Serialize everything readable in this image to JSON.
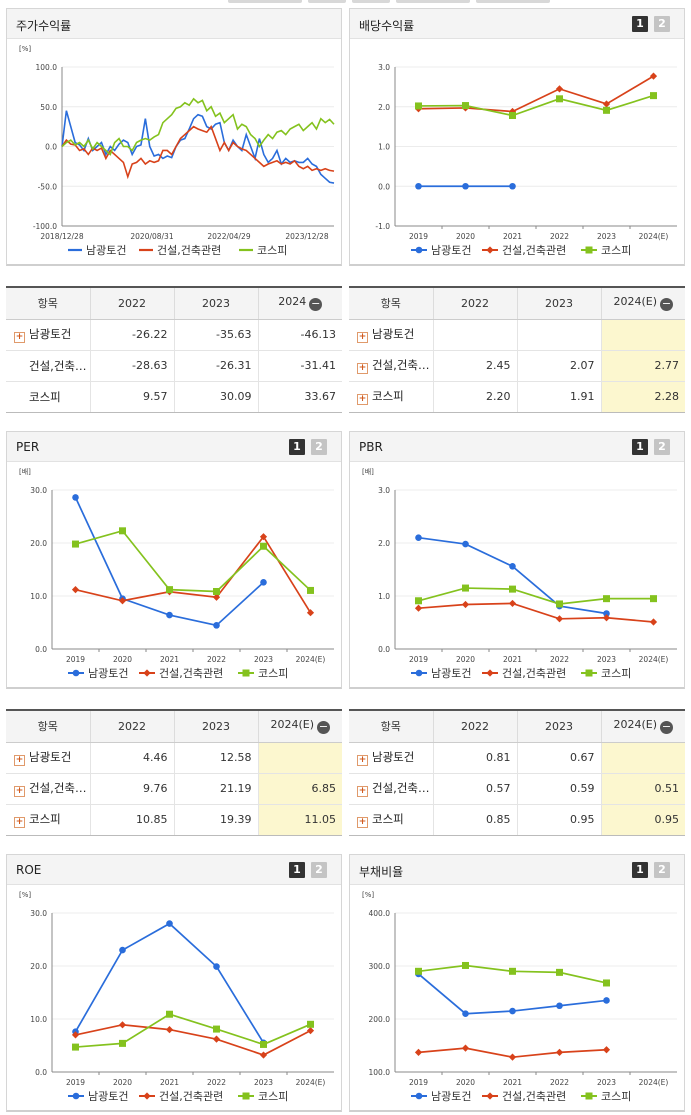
{
  "colors": {
    "s1": "#2a6ddb",
    "s2": "#d8421a",
    "s3": "#84c21e"
  },
  "legend": [
    "남광토건",
    "건설,건축관련",
    "코스피"
  ],
  "panels": {
    "stock": {
      "title": "주가수익률",
      "unit": "[%]"
    },
    "dividend": {
      "title": "배당수익률",
      "page1": "1",
      "page2": "2"
    },
    "per": {
      "title": "PER",
      "unit": "[배]",
      "page1": "1",
      "page2": "2"
    },
    "pbr": {
      "title": "PBR",
      "unit": "[배]",
      "page1": "1",
      "page2": "2"
    },
    "roe": {
      "title": "ROE",
      "unit": "[%]",
      "page1": "1",
      "page2": "2"
    },
    "debt": {
      "title": "부채비율",
      "unit": "[%]",
      "page1": "1",
      "page2": "2"
    }
  },
  "tables": {
    "stock": {
      "headers": [
        "항목",
        "2022",
        "2023",
        "2024"
      ],
      "rows": [
        {
          "name": "남광토건",
          "plus": true,
          "values": [
            "-26.22",
            "-35.63",
            "-46.13"
          ]
        },
        {
          "name": "건설,건축…",
          "plus": false,
          "values": [
            "-28.63",
            "-26.31",
            "-31.41"
          ]
        },
        {
          "name": "코스피",
          "plus": false,
          "values": [
            "9.57",
            "30.09",
            "33.67"
          ]
        }
      ]
    },
    "dividend": {
      "headers": [
        "항목",
        "2022",
        "2023",
        "2024(E)"
      ],
      "rows": [
        {
          "name": "남광토건",
          "plus": true,
          "values": [
            "",
            "",
            ""
          ]
        },
        {
          "name": "건설,건축…",
          "plus": true,
          "values": [
            "2.45",
            "2.07",
            "2.77"
          ]
        },
        {
          "name": "코스피",
          "plus": true,
          "values": [
            "2.20",
            "1.91",
            "2.28"
          ]
        }
      ]
    },
    "per": {
      "headers": [
        "항목",
        "2022",
        "2023",
        "2024(E)"
      ],
      "rows": [
        {
          "name": "남광토건",
          "plus": true,
          "values": [
            "4.46",
            "12.58",
            ""
          ]
        },
        {
          "name": "건설,건축…",
          "plus": true,
          "values": [
            "9.76",
            "21.19",
            "6.85"
          ]
        },
        {
          "name": "코스피",
          "plus": true,
          "values": [
            "10.85",
            "19.39",
            "11.05"
          ]
        }
      ]
    },
    "pbr": {
      "headers": [
        "항목",
        "2022",
        "2023",
        "2024(E)"
      ],
      "rows": [
        {
          "name": "남광토건",
          "plus": true,
          "values": [
            "0.81",
            "0.67",
            ""
          ]
        },
        {
          "name": "건설,건축…",
          "plus": true,
          "values": [
            "0.57",
            "0.59",
            "0.51"
          ]
        },
        {
          "name": "코스피",
          "plus": true,
          "values": [
            "0.85",
            "0.95",
            "0.95"
          ]
        }
      ]
    }
  },
  "chart_data": [
    {
      "id": "stock",
      "type": "line",
      "ylim": [
        -100,
        100
      ],
      "yticks": [
        "100.0",
        "50.0",
        "0.0",
        "-50.0",
        "-100.0"
      ],
      "xticks": [
        "2018/12/28",
        "2020/08/31",
        "2022/04/29",
        "2023/12/28"
      ],
      "series": [
        {
          "name": "남광토건",
          "values": [
            0,
            45,
            25,
            5,
            2,
            -5,
            10,
            -5,
            0,
            5,
            -10,
            0,
            -5,
            3,
            8,
            5,
            -10,
            0,
            2,
            35,
            0,
            -12,
            -10,
            -15,
            -12,
            -14,
            0,
            8,
            10,
            22,
            35,
            40,
            38,
            25,
            22,
            28,
            30,
            5,
            -5,
            8,
            0,
            -5,
            15,
            0,
            -15,
            10,
            -10,
            -20,
            -15,
            -5,
            -22,
            -15,
            -20,
            -18,
            -20,
            -20,
            -15,
            -22,
            -25,
            -35,
            -40,
            -45,
            -46
          ]
        },
        {
          "name": "건설,건축관련",
          "values": [
            0,
            8,
            3,
            2,
            -5,
            -3,
            -10,
            -2,
            -5,
            -2,
            -15,
            -5,
            -10,
            -15,
            -20,
            -38,
            -22,
            -20,
            -15,
            -22,
            -18,
            -20,
            -18,
            -5,
            -5,
            -10,
            0,
            10,
            15,
            20,
            25,
            22,
            20,
            18,
            25,
            10,
            -5,
            5,
            -5,
            5,
            0,
            -3,
            -5,
            -10,
            -15,
            -20,
            -25,
            -22,
            -20,
            -18,
            -22,
            -20,
            -22,
            -18,
            -25,
            -28,
            -25,
            -30,
            -28,
            -30,
            -28,
            -30,
            -31
          ]
        },
        {
          "name": "코스피",
          "values": [
            0,
            5,
            8,
            2,
            5,
            0,
            8,
            -3,
            5,
            0,
            -5,
            -10,
            5,
            10,
            0,
            0,
            -5,
            5,
            8,
            10,
            8,
            12,
            15,
            30,
            35,
            40,
            48,
            50,
            55,
            52,
            60,
            55,
            58,
            45,
            50,
            38,
            42,
            30,
            35,
            40,
            22,
            28,
            25,
            15,
            10,
            0,
            8,
            15,
            10,
            18,
            20,
            15,
            22,
            25,
            28,
            20,
            25,
            30,
            22,
            35,
            30,
            34,
            28
          ]
        }
      ]
    },
    {
      "id": "dividend",
      "type": "line",
      "ylim": [
        -1,
        3
      ],
      "yticks": [
        "3.0",
        "2.0",
        "1.0",
        "0.0",
        "-1.0"
      ],
      "categories": [
        "2019",
        "2020",
        "2021",
        "2022",
        "2023",
        "2024(E)"
      ],
      "series": [
        {
          "name": "남광토건",
          "values": [
            0,
            0,
            0,
            null,
            null,
            null
          ]
        },
        {
          "name": "건설,건축관련",
          "values": [
            1.95,
            1.97,
            1.88,
            2.45,
            2.07,
            2.77
          ]
        },
        {
          "name": "코스피",
          "values": [
            2.02,
            2.03,
            1.78,
            2.2,
            1.91,
            2.28
          ]
        }
      ]
    },
    {
      "id": "per",
      "type": "line",
      "ylim": [
        0,
        30
      ],
      "yticks": [
        "30.0",
        "20.0",
        "10.0",
        "0.0"
      ],
      "categories": [
        "2019",
        "2020",
        "2021",
        "2022",
        "2023",
        "2024(E)"
      ],
      "series": [
        {
          "name": "남광토건",
          "values": [
            28.6,
            9.5,
            6.4,
            4.46,
            12.58,
            null
          ]
        },
        {
          "name": "건설,건축관련",
          "values": [
            11.2,
            9.1,
            10.8,
            9.76,
            21.19,
            6.85
          ]
        },
        {
          "name": "코스피",
          "values": [
            19.8,
            22.3,
            11.2,
            10.85,
            19.39,
            11.05
          ]
        }
      ]
    },
    {
      "id": "pbr",
      "type": "line",
      "ylim": [
        0,
        3
      ],
      "yticks": [
        "3.0",
        "2.0",
        "1.0",
        "0.0"
      ],
      "categories": [
        "2019",
        "2020",
        "2021",
        "2022",
        "2023",
        "2024(E)"
      ],
      "series": [
        {
          "name": "남광토건",
          "values": [
            2.1,
            1.98,
            1.56,
            0.81,
            0.67,
            null
          ]
        },
        {
          "name": "건설,건축관련",
          "values": [
            0.77,
            0.84,
            0.86,
            0.57,
            0.59,
            0.51
          ]
        },
        {
          "name": "코스피",
          "values": [
            0.91,
            1.15,
            1.13,
            0.85,
            0.95,
            0.95
          ]
        }
      ]
    },
    {
      "id": "roe",
      "type": "line",
      "ylim": [
        0,
        30
      ],
      "yticks": [
        "30.0",
        "20.0",
        "10.0",
        "0.0"
      ],
      "categories": [
        "2019",
        "2020",
        "2021",
        "2022",
        "2023",
        "2024(E)"
      ],
      "series": [
        {
          "name": "남광토건",
          "values": [
            7.6,
            23.0,
            28.0,
            19.9,
            5.5,
            null
          ]
        },
        {
          "name": "건설,건축관련",
          "values": [
            7.0,
            8.9,
            8.0,
            6.2,
            3.2,
            7.8
          ]
        },
        {
          "name": "코스피",
          "values": [
            4.7,
            5.4,
            10.9,
            8.1,
            5.2,
            9.0
          ]
        }
      ]
    },
    {
      "id": "debt",
      "type": "line",
      "ylim": [
        100,
        400
      ],
      "yticks": [
        "400.0",
        "300.0",
        "200.0",
        "100.0"
      ],
      "categories": [
        "2019",
        "2020",
        "2021",
        "2022",
        "2023",
        "2024(E)"
      ],
      "series": [
        {
          "name": "남광토건",
          "values": [
            285,
            210,
            215,
            225,
            235,
            null
          ]
        },
        {
          "name": "건설,건축관련",
          "values": [
            137,
            145,
            128,
            137,
            142,
            null
          ]
        },
        {
          "name": "코스피",
          "values": [
            290,
            301,
            290,
            288,
            268,
            null
          ]
        }
      ]
    }
  ]
}
